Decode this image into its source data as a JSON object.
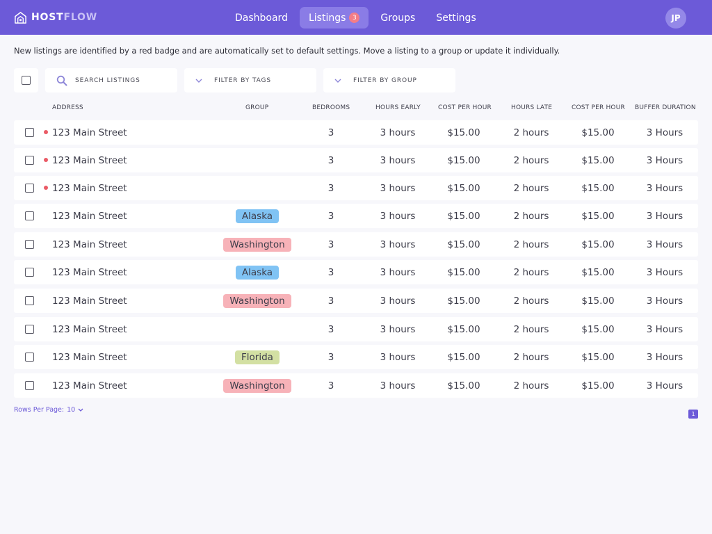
{
  "app": {
    "brand_bold": "HOST",
    "brand_light": "FLOW",
    "colors": {
      "primary": "#6c5ad8",
      "new_badge": "#ea5b66"
    }
  },
  "nav": {
    "items": [
      {
        "label": "Dashboard"
      },
      {
        "label": "Listings",
        "badge": "3",
        "active": true
      },
      {
        "label": "Groups"
      },
      {
        "label": "Settings"
      }
    ]
  },
  "user": {
    "initials": "JP"
  },
  "info_text": "New listings are identified by a red badge and are automatically set to default settings. Move a listing to a group or update it individually.",
  "filters": {
    "search_placeholder": "SEARCH LISTINGS",
    "tags_label": "FILTER BY TAGS",
    "group_label": "FILTER BY GROUP",
    "icons": {
      "search": "search-icon",
      "dropdown": "chevron-down-icon"
    }
  },
  "table": {
    "headers": {
      "address": "ADDRESS",
      "group": "GROUP",
      "bedrooms": "BEDROOMS",
      "hours_early": "HOURS EARLY",
      "cost_early": "COST PER HOUR",
      "hours_late": "HOURS LATE",
      "cost_late": "COST PER HOUR",
      "buffer": "BUFFER DURATION"
    },
    "group_colors": {
      "Alaska": "#80c3f4",
      "Washington": "#f7b2b8",
      "Florida": "#d3e0a3"
    },
    "rows": [
      {
        "address": "123 Main Street",
        "is_new": true,
        "group": "",
        "bedrooms": "3",
        "hours_early": "3 hours",
        "cost_early": "$15.00",
        "hours_late": "2 hours",
        "cost_late": "$15.00",
        "buffer": "3 Hours"
      },
      {
        "address": "123 Main Street",
        "is_new": true,
        "group": "",
        "bedrooms": "3",
        "hours_early": "3 hours",
        "cost_early": "$15.00",
        "hours_late": "2 hours",
        "cost_late": "$15.00",
        "buffer": "3 Hours"
      },
      {
        "address": "123 Main Street",
        "is_new": true,
        "group": "",
        "bedrooms": "3",
        "hours_early": "3 hours",
        "cost_early": "$15.00",
        "hours_late": "2 hours",
        "cost_late": "$15.00",
        "buffer": "3 Hours"
      },
      {
        "address": "123 Main Street",
        "is_new": false,
        "group": "Alaska",
        "bedrooms": "3",
        "hours_early": "3 hours",
        "cost_early": "$15.00",
        "hours_late": "2 hours",
        "cost_late": "$15.00",
        "buffer": "3 Hours"
      },
      {
        "address": "123 Main Street",
        "is_new": false,
        "group": "Washington",
        "bedrooms": "3",
        "hours_early": "3 hours",
        "cost_early": "$15.00",
        "hours_late": "2 hours",
        "cost_late": "$15.00",
        "buffer": "3 Hours"
      },
      {
        "address": "123 Main Street",
        "is_new": false,
        "group": "Alaska",
        "bedrooms": "3",
        "hours_early": "3 hours",
        "cost_early": "$15.00",
        "hours_late": "2 hours",
        "cost_late": "$15.00",
        "buffer": "3 Hours"
      },
      {
        "address": "123 Main Street",
        "is_new": false,
        "group": "Washington",
        "bedrooms": "3",
        "hours_early": "3 hours",
        "cost_early": "$15.00",
        "hours_late": "2 hours",
        "cost_late": "$15.00",
        "buffer": "3 Hours"
      },
      {
        "address": "123 Main Street",
        "is_new": false,
        "group": "",
        "bedrooms": "3",
        "hours_early": "3 hours",
        "cost_early": "$15.00",
        "hours_late": "2 hours",
        "cost_late": "$15.00",
        "buffer": "3 Hours"
      },
      {
        "address": "123 Main Street",
        "is_new": false,
        "group": "Florida",
        "bedrooms": "3",
        "hours_early": "3 hours",
        "cost_early": "$15.00",
        "hours_late": "2 hours",
        "cost_late": "$15.00",
        "buffer": "3 Hours"
      },
      {
        "address": "123 Main Street",
        "is_new": false,
        "group": "Washington",
        "bedrooms": "3",
        "hours_early": "3 hours",
        "cost_early": "$15.00",
        "hours_late": "2 hours",
        "cost_late": "$15.00",
        "buffer": "3 Hours"
      }
    ]
  },
  "pagination": {
    "rows_per_page_label": "Rows Per Page:",
    "rows_per_page_value": "10",
    "current_page": "1"
  }
}
